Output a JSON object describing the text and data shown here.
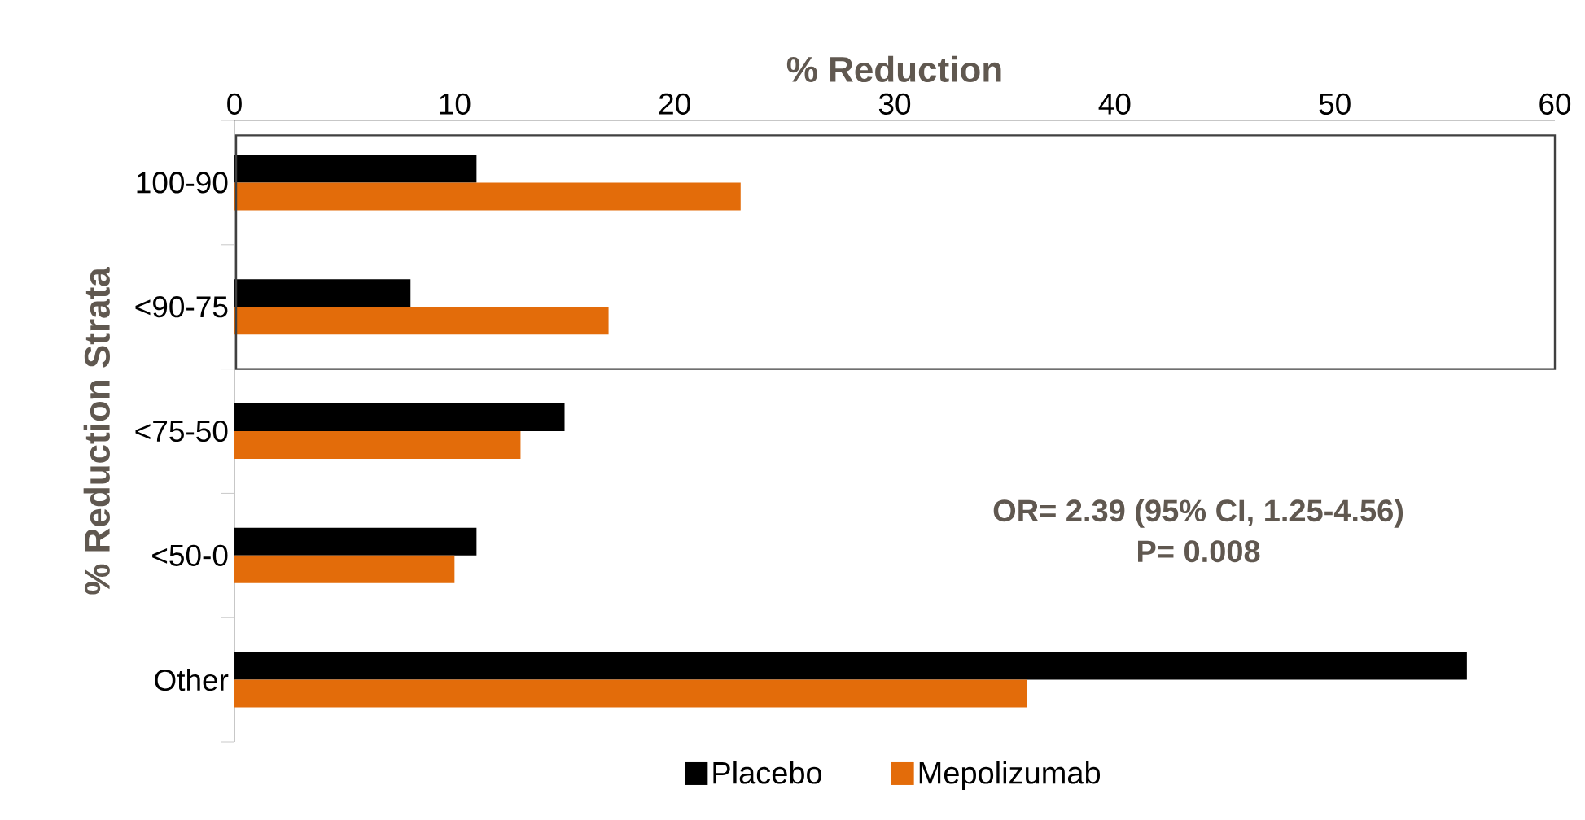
{
  "chart_data": {
    "type": "bar",
    "orientation": "horizontal",
    "xlabel": "%  Reduction",
    "ylabel": "% Reduction Strata",
    "categories": [
      "100-90",
      "<90-75",
      "<75-50",
      "<50-0",
      "Other"
    ],
    "series": [
      {
        "name": "Placebo",
        "color": "#000000",
        "values": [
          11,
          8,
          15,
          11,
          56
        ]
      },
      {
        "name": "Mepolizumab",
        "color": "#e36c0a",
        "values": [
          23,
          17,
          13,
          10,
          36
        ]
      }
    ],
    "xlim": [
      0,
      60
    ],
    "xticks": [
      0,
      10,
      20,
      30,
      40,
      50,
      60
    ],
    "annotations": [
      "OR= 2.39 (95% CI, 1.25-4.56)",
      "P= 0.008"
    ],
    "legend": "bottom"
  }
}
